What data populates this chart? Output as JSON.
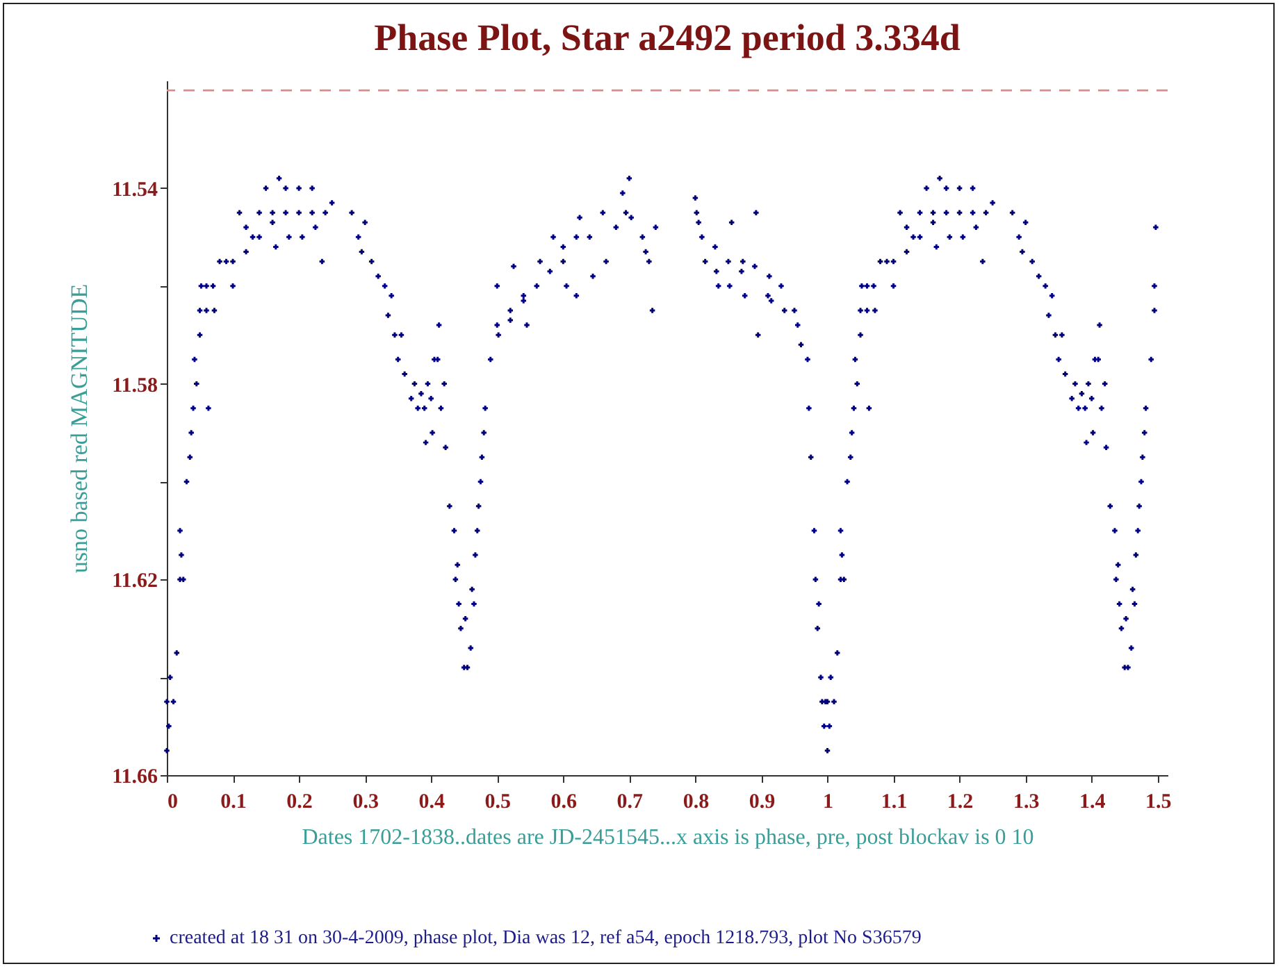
{
  "chart_data": {
    "type": "scatter",
    "title": "Phase Plot, Star a2492 period 3.334d",
    "xlabel": "Dates  1702-1838..dates are JD-2451545...x axis is phase, pre, post blockav is 0 10",
    "ylabel": "usno based red MAGNITUDE",
    "annotations": [
      "created at 18 31 on 30-4-2009,  phase plot, Dia was 12, ref a54, epoch 1218.793,  plot No S36579"
    ],
    "xlim": [
      0,
      1.515
    ],
    "xticks": [
      0,
      0.1,
      0.2,
      0.3,
      0.4,
      0.5,
      0.6,
      0.7,
      0.8,
      0.9,
      1,
      1.1,
      1.2,
      1.3,
      1.4,
      1.5
    ],
    "ylim": [
      11.66,
      11.518
    ],
    "yticks": [
      11.54,
      {
        "value": 11.56,
        "label": null
      },
      11.58,
      {
        "value": 11.6,
        "label": null
      },
      11.62,
      {
        "value": 11.64,
        "label": null
      },
      11.66
    ],
    "grid": false,
    "marker": "cross",
    "ref_lines": [
      {
        "axis": "y",
        "value": 11.52,
        "label": null,
        "color": "#d98c8c",
        "line_style": "dashed"
      }
    ],
    "series": [
      {
        "color": "#000080",
        "x": [
          0,
          0,
          0.003,
          0.005,
          0.01,
          0.015,
          0.02,
          0.02,
          0.022,
          0.025,
          0.03,
          0.035,
          0.037,
          0.04,
          0.042,
          0.045,
          0.05,
          0.05,
          0.052,
          0.06,
          0.06,
          0.063,
          0.07,
          0.072,
          0.08,
          0.09,
          0.1,
          0.1,
          0.11,
          0.12,
          0.12,
          0.13,
          0.14,
          0.14,
          0.15,
          0.16,
          0.16,
          0.165,
          0.17,
          0.18,
          0.18,
          0.185,
          0.2,
          0.2,
          0.205,
          0.22,
          0.22,
          0.225,
          0.235,
          0.24,
          0.25,
          0.28,
          0.29,
          0.295,
          0.3,
          0.31,
          0.32,
          0.33,
          0.335,
          0.34,
          0.345,
          0.35,
          0.355,
          0.36,
          0.37,
          0.375,
          0.38,
          0.385,
          0.39,
          0.392,
          0.395,
          0.4,
          0.402,
          0.405,
          0.41,
          0.412,
          0.415,
          0.42,
          0.422,
          0.428,
          0.435,
          0.437,
          0.44,
          0.442,
          0.445,
          0.45,
          0.452,
          0.455,
          0.46,
          0.462,
          0.465,
          0.467,
          0.47,
          0.472,
          0.475,
          0.477,
          0.48,
          0.482,
          0.49,
          0.5,
          0.5,
          0.502,
          0.52,
          0.52,
          0.525,
          0.54,
          0.54,
          0.545,
          0.56,
          0.565,
          0.58,
          0.585,
          0.6,
          0.6,
          0.605,
          0.62,
          0.62,
          0.625,
          0.64,
          0.645,
          0.66,
          0.665,
          0.68,
          0.69,
          0.695,
          0.7,
          0.703,
          0.72,
          0.725,
          0.73,
          0.735,
          0.74,
          0.8,
          0.802,
          0.805,
          0.81,
          0.815,
          0.83,
          0.832,
          0.835,
          0.85,
          0.852,
          0.855,
          0.87,
          0.872,
          0.875,
          0.89,
          0.892,
          0.895,
          0.91,
          0.912,
          0.915,
          0.93,
          0.935,
          0.95,
          0.955,
          0.96,
          0.97,
          0.972,
          0.975,
          0.98,
          0.982,
          0.985,
          0.987,
          0.99,
          0.992,
          0.995,
          0.997,
          1,
          1,
          1.003,
          1.005,
          1.01,
          1.015,
          1.02,
          1.02,
          1.022,
          1.025,
          1.03,
          1.035,
          1.037,
          1.04,
          1.042,
          1.045,
          1.05,
          1.05,
          1.052,
          1.06,
          1.06,
          1.063,
          1.07,
          1.072,
          1.08,
          1.09,
          1.1,
          1.1,
          1.11,
          1.12,
          1.12,
          1.13,
          1.14,
          1.14,
          1.15,
          1.16,
          1.16,
          1.165,
          1.17,
          1.18,
          1.18,
          1.185,
          1.2,
          1.2,
          1.205,
          1.22,
          1.22,
          1.225,
          1.235,
          1.24,
          1.25,
          1.28,
          1.29,
          1.295,
          1.3,
          1.31,
          1.32,
          1.33,
          1.335,
          1.34,
          1.345,
          1.35,
          1.355,
          1.36,
          1.37,
          1.375,
          1.38,
          1.385,
          1.39,
          1.392,
          1.395,
          1.4,
          1.402,
          1.405,
          1.41,
          1.412,
          1.415,
          1.42,
          1.422,
          1.428,
          1.435,
          1.437,
          1.44,
          1.442,
          1.445,
          1.45,
          1.452,
          1.455,
          1.46,
          1.462,
          1.465,
          1.467,
          1.47,
          1.472,
          1.475,
          1.477,
          1.48,
          1.482,
          1.49,
          1.495,
          1.495,
          1.497
        ],
        "values": [
          11.655,
          11.645,
          11.65,
          11.64,
          11.645,
          11.635,
          11.62,
          11.61,
          11.615,
          11.62,
          11.6,
          11.595,
          11.59,
          11.585,
          11.575,
          11.58,
          11.565,
          11.57,
          11.56,
          11.565,
          11.56,
          11.585,
          11.56,
          11.565,
          11.555,
          11.555,
          11.555,
          11.56,
          11.545,
          11.553,
          11.548,
          11.55,
          11.55,
          11.545,
          11.54,
          11.547,
          11.545,
          11.552,
          11.538,
          11.54,
          11.545,
          11.55,
          11.545,
          11.54,
          11.55,
          11.54,
          11.545,
          11.548,
          11.555,
          11.545,
          11.543,
          11.545,
          11.55,
          11.553,
          11.547,
          11.555,
          11.558,
          11.56,
          11.566,
          11.562,
          11.57,
          11.575,
          11.57,
          11.578,
          11.583,
          11.58,
          11.585,
          11.582,
          11.585,
          11.592,
          11.58,
          11.583,
          11.59,
          11.575,
          11.575,
          11.568,
          11.585,
          11.58,
          11.593,
          11.605,
          11.61,
          11.62,
          11.617,
          11.625,
          11.63,
          11.638,
          11.628,
          11.638,
          11.634,
          11.622,
          11.625,
          11.615,
          11.61,
          11.605,
          11.6,
          11.595,
          11.59,
          11.585,
          11.575,
          11.568,
          11.56,
          11.57,
          11.567,
          11.565,
          11.556,
          11.562,
          11.563,
          11.568,
          11.56,
          11.555,
          11.557,
          11.55,
          11.552,
          11.555,
          11.56,
          11.55,
          11.562,
          11.546,
          11.55,
          11.558,
          11.545,
          11.555,
          11.548,
          11.541,
          11.545,
          11.538,
          11.546,
          11.55,
          11.553,
          11.555,
          11.565,
          11.548,
          11.542,
          11.545,
          11.547,
          11.55,
          11.555,
          11.552,
          11.557,
          11.56,
          11.555,
          11.56,
          11.547,
          11.557,
          11.555,
          11.562,
          11.556,
          11.545,
          11.57,
          11.562,
          11.558,
          11.563,
          11.56,
          11.565,
          11.565,
          11.568,
          11.572,
          11.575,
          11.585,
          11.595,
          11.61,
          11.62,
          11.63,
          11.625,
          11.64,
          11.645,
          11.65,
          11.645,
          11.655,
          11.645,
          11.65,
          11.64,
          11.645,
          11.635,
          11.62,
          11.61,
          11.615,
          11.62,
          11.6,
          11.595,
          11.59,
          11.585,
          11.575,
          11.58,
          11.565,
          11.57,
          11.56,
          11.565,
          11.56,
          11.585,
          11.56,
          11.565,
          11.555,
          11.555,
          11.555,
          11.56,
          11.545,
          11.553,
          11.548,
          11.55,
          11.55,
          11.545,
          11.54,
          11.547,
          11.545,
          11.552,
          11.538,
          11.54,
          11.545,
          11.55,
          11.545,
          11.54,
          11.55,
          11.54,
          11.545,
          11.548,
          11.555,
          11.545,
          11.543,
          11.545,
          11.55,
          11.553,
          11.547,
          11.555,
          11.558,
          11.56,
          11.566,
          11.562,
          11.57,
          11.575,
          11.57,
          11.578,
          11.583,
          11.58,
          11.585,
          11.582,
          11.585,
          11.592,
          11.58,
          11.583,
          11.59,
          11.575,
          11.575,
          11.568,
          11.585,
          11.58,
          11.593,
          11.605,
          11.61,
          11.62,
          11.617,
          11.625,
          11.63,
          11.638,
          11.628,
          11.638,
          11.634,
          11.622,
          11.625,
          11.615,
          11.61,
          11.605,
          11.6,
          11.595,
          11.59,
          11.585,
          11.575,
          11.565,
          11.56,
          11.548
        ]
      }
    ]
  }
}
